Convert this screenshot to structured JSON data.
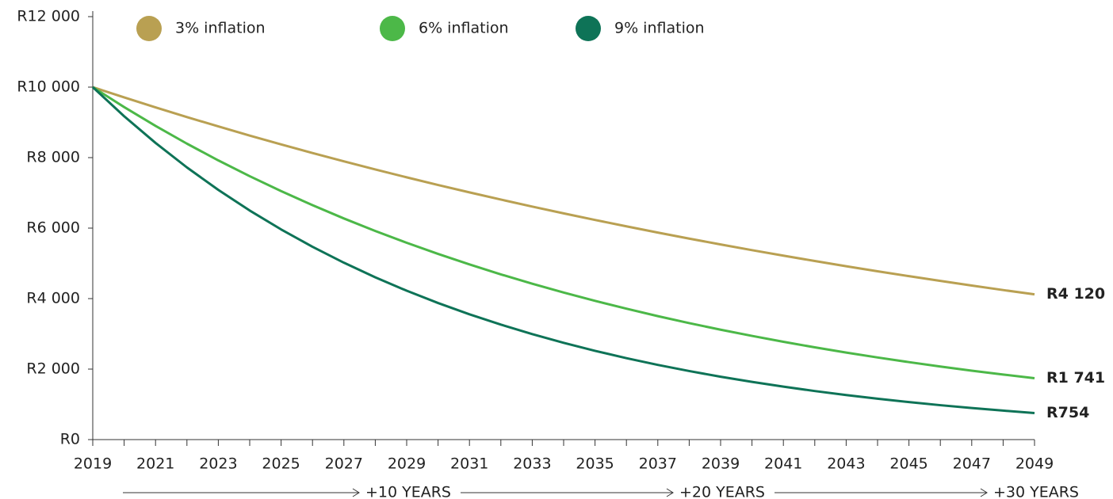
{
  "chart_data": {
    "type": "line",
    "x": [
      2019,
      2020,
      2021,
      2022,
      2023,
      2024,
      2025,
      2026,
      2027,
      2028,
      2029,
      2030,
      2031,
      2032,
      2033,
      2034,
      2035,
      2036,
      2037,
      2038,
      2039,
      2040,
      2041,
      2042,
      2043,
      2044,
      2045,
      2046,
      2047,
      2048,
      2049
    ],
    "series": [
      {
        "name": "3% inflation",
        "color": "#b9a052",
        "values": [
          10000,
          9709,
          9426,
          9151,
          8885,
          8626,
          8375,
          8131,
          7894,
          7664,
          7441,
          7224,
          7014,
          6810,
          6611,
          6419,
          6232,
          6050,
          5874,
          5703,
          5537,
          5375,
          5219,
          5067,
          4919,
          4776,
          4637,
          4502,
          4371,
          4243,
          4120
        ],
        "value_labels": [
          null,
          null,
          null,
          null,
          null,
          null,
          null,
          null,
          null,
          null,
          null,
          null,
          null,
          null,
          null,
          null,
          null,
          null,
          null,
          null,
          null,
          null,
          null,
          null,
          null,
          null,
          null,
          null,
          null,
          null,
          "R4 120"
        ]
      },
      {
        "name": "6% inflation",
        "color": "#4cb848",
        "values": [
          10000,
          9434,
          8900,
          8396,
          7921,
          7473,
          7050,
          6651,
          6274,
          5919,
          5584,
          5268,
          4970,
          4688,
          4423,
          4173,
          3936,
          3714,
          3503,
          3305,
          3118,
          2942,
          2775,
          2618,
          2470,
          2330,
          2198,
          2074,
          1956,
          1846,
          1741
        ],
        "value_labels": [
          null,
          null,
          null,
          null,
          null,
          null,
          null,
          null,
          null,
          null,
          null,
          null,
          null,
          null,
          null,
          null,
          null,
          null,
          null,
          null,
          null,
          null,
          null,
          null,
          null,
          null,
          null,
          null,
          null,
          null,
          "R1 741"
        ]
      },
      {
        "name": "9% inflation",
        "color": "#0e7357",
        "values": [
          10000,
          9174,
          8417,
          7722,
          7084,
          6499,
          5963,
          5470,
          5019,
          4604,
          4224,
          3875,
          3555,
          3262,
          2992,
          2745,
          2519,
          2311,
          2120,
          1945,
          1784,
          1637,
          1502,
          1378,
          1264,
          1160,
          1064,
          976,
          895,
          822,
          754
        ],
        "value_labels": [
          null,
          null,
          null,
          null,
          null,
          null,
          null,
          null,
          null,
          null,
          null,
          null,
          null,
          null,
          null,
          null,
          null,
          null,
          null,
          null,
          null,
          null,
          null,
          null,
          null,
          null,
          null,
          null,
          null,
          null,
          "R754"
        ]
      }
    ],
    "xlim": [
      2019,
      2049
    ],
    "xticks": [
      2019,
      2021,
      2023,
      2025,
      2027,
      2029,
      2031,
      2033,
      2035,
      2037,
      2039,
      2041,
      2043,
      2045,
      2047,
      2049
    ],
    "xminor_ticks": [
      2020,
      2022,
      2024,
      2026,
      2028,
      2030,
      2032,
      2034,
      2036,
      2038,
      2040,
      2042,
      2044,
      2046,
      2048
    ],
    "ylim": [
      0,
      12000
    ],
    "yticks": [
      {
        "value": 0,
        "label": "R0"
      },
      {
        "value": 2000,
        "label": "R2 000"
      },
      {
        "value": 4000,
        "label": "R4 000"
      },
      {
        "value": 6000,
        "label": "R6 000"
      },
      {
        "value": 8000,
        "label": "R8 000"
      },
      {
        "value": 10000,
        "label": "R10 000"
      },
      {
        "value": 12000,
        "label": "R12 000"
      }
    ],
    "annotations": [
      {
        "text": "+10 YEARS",
        "x": 2029
      },
      {
        "text": "+20 YEARS",
        "x": 2039
      },
      {
        "text": "+30 YEARS",
        "x": 2049
      }
    ],
    "legend": "top",
    "grid": false
  }
}
